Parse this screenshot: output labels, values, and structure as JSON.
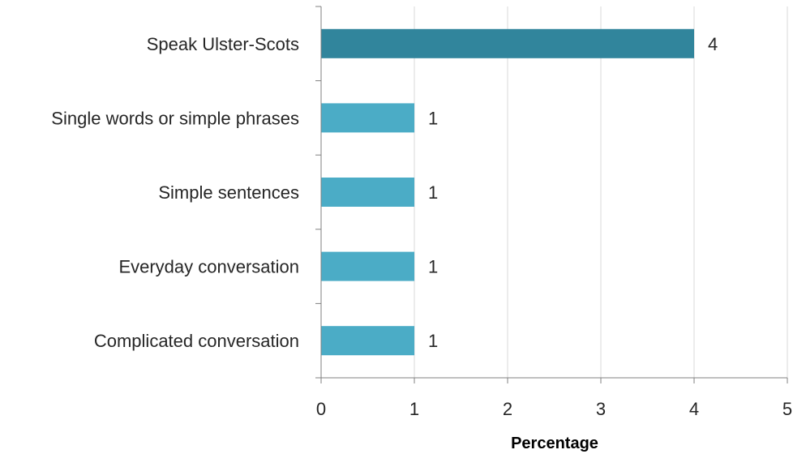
{
  "chart_data": {
    "type": "bar",
    "orientation": "horizontal",
    "categories": [
      "Speak Ulster-Scots",
      "Single words or simple phrases",
      "Simple sentences",
      "Everyday conversation",
      "Complicated conversation"
    ],
    "values": [
      4,
      1,
      1,
      1,
      1
    ],
    "data_labels": [
      "4",
      "1",
      "1",
      "1",
      "1"
    ],
    "bar_colors": [
      "#31859c",
      "#4bacc6",
      "#4bacc6",
      "#4bacc6",
      "#4bacc6"
    ],
    "xlabel": "Percentage",
    "ylabel": "",
    "title": "",
    "xlim": [
      0,
      5
    ],
    "xticks": [
      "0",
      "1",
      "2",
      "3",
      "4",
      "5"
    ],
    "grid": true,
    "legend": "none"
  }
}
